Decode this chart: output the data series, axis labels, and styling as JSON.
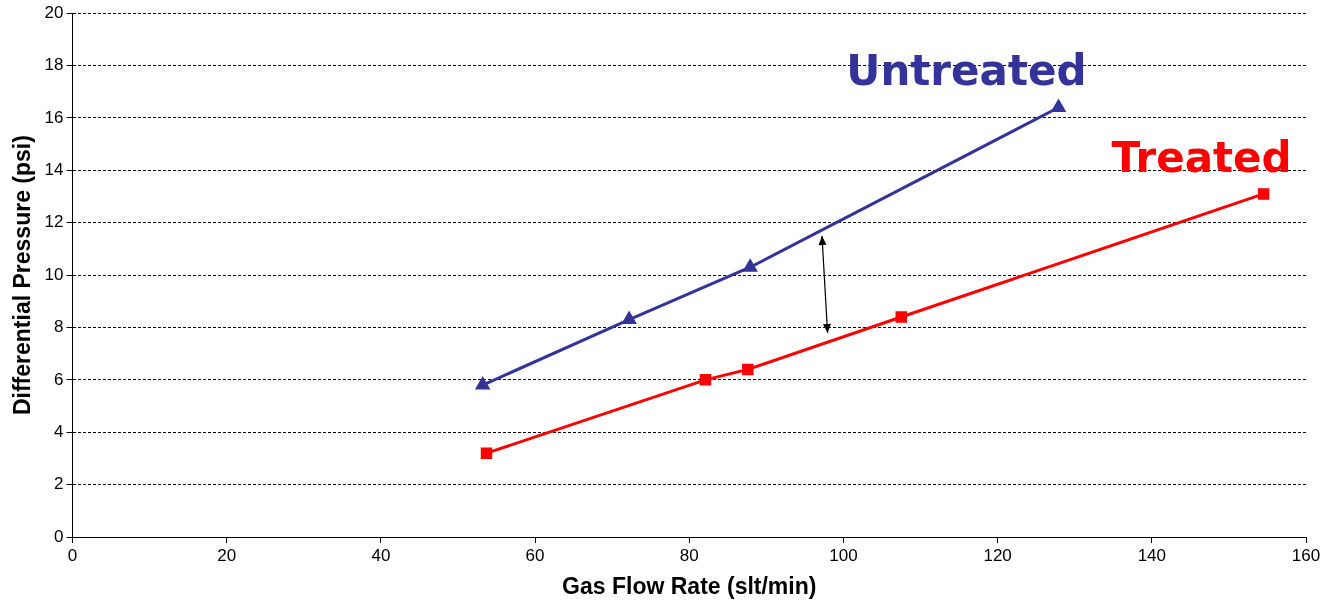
{
  "chart_data": {
    "type": "line",
    "xlabel": "Gas Flow Rate (slt/min)",
    "ylabel": "Differential Pressure (psi)",
    "xlim": [
      0,
      160
    ],
    "xticks": [
      0,
      20,
      40,
      60,
      80,
      100,
      120,
      140,
      160
    ],
    "ylim": [
      0,
      20
    ],
    "yticks": [
      0,
      2,
      4,
      6,
      8,
      10,
      12,
      14,
      16,
      18,
      20
    ],
    "grid": "y",
    "legend": false,
    "line_style": "solid",
    "series": [
      {
        "name": "Untreated",
        "color": "#333399",
        "marker": "triangle",
        "x": [
          53.2,
          72.2,
          87.9,
          127.9
        ],
        "values": [
          5.8,
          8.3,
          10.3,
          16.4
        ]
      },
      {
        "name": "Treated",
        "color": "#ff0000",
        "marker": "square",
        "x": [
          53.7,
          82.1,
          87.6,
          107.5,
          154.5
        ],
        "values": [
          3.2,
          6.0,
          6.4,
          8.4,
          13.1
        ]
      }
    ]
  }
}
